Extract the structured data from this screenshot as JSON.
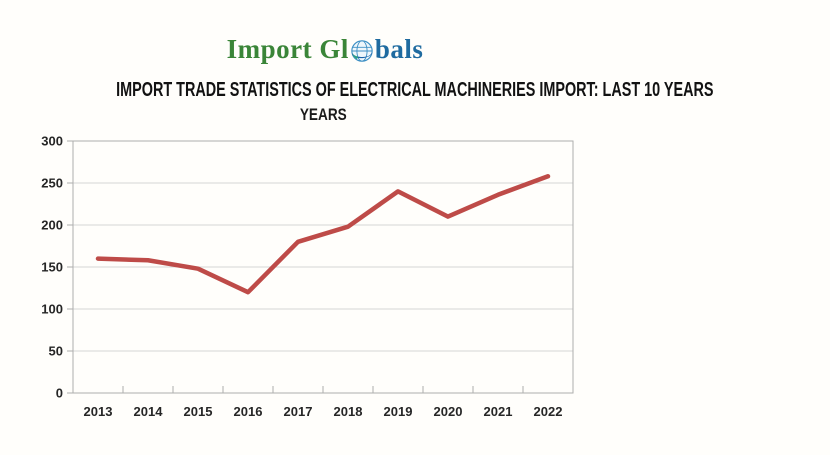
{
  "logo": {
    "part1": "Import Gl",
    "part2": "bals",
    "green_color": "#3a8538",
    "blue_color": "#1f6ba0"
  },
  "header": {
    "title": "IMPORT TRADE STATISTICS OF ELECTRICAL MACHINERIES IMPORT: LAST 10 YEARS"
  },
  "chart_data": {
    "type": "line",
    "title": "YEARS",
    "categories": [
      "2013",
      "2014",
      "2015",
      "2016",
      "2017",
      "2018",
      "2019",
      "2020",
      "2021",
      "2022"
    ],
    "values": [
      160,
      158,
      148,
      120,
      180,
      198,
      240,
      210,
      236,
      258
    ],
    "ylim": [
      0,
      300
    ],
    "yticks": [
      0,
      50,
      100,
      150,
      200,
      250,
      300
    ],
    "grid": true,
    "legend_position": "none",
    "line_color": "#be4b48",
    "grid_color": "#d6d6d6",
    "axis_color": "#aeaeae",
    "tick_label_color": "#262626"
  }
}
